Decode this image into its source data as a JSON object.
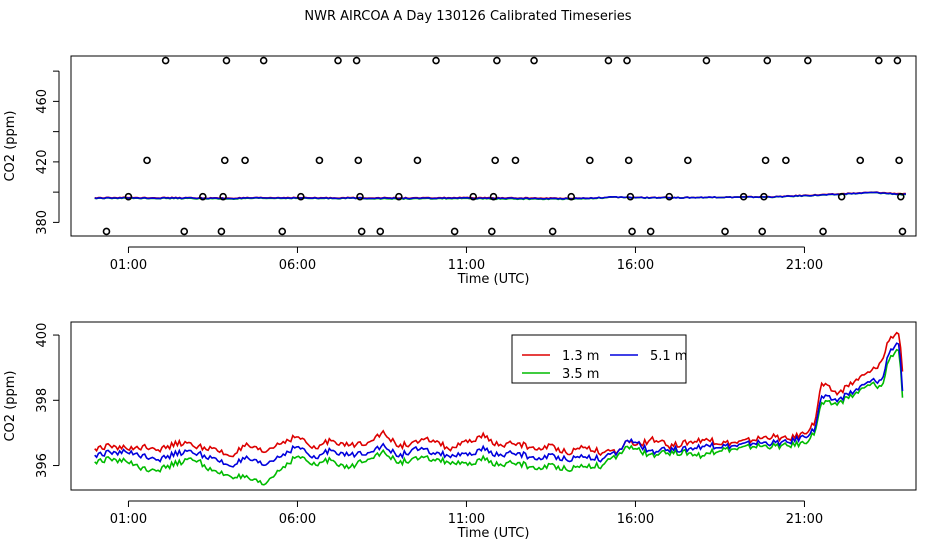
{
  "figure_title": "NWR AIRCOA A  Day 130126  Calibrated Timeseries",
  "colors": {
    "red": "#dd0000",
    "green": "#00bb00",
    "blue": "#0000dd"
  },
  "chart_data": [
    {
      "type": "line",
      "panel": "top",
      "xlabel": "Time (UTC)",
      "ylabel": "CO2 (ppm)",
      "xlim": [
        -0.7,
        24.3
      ],
      "ylim": [
        371,
        490
      ],
      "xticks": [
        1,
        6,
        11,
        16,
        21
      ],
      "xtick_labels": [
        "01:00",
        "06:00",
        "11:00",
        "16:00",
        "21:00"
      ],
      "yticks": [
        380,
        420,
        460
      ],
      "ytick_labels": [
        "380",
        "420",
        "460"
      ],
      "baseline_series": [
        {
          "name": "1.3 m",
          "color": "#dd0000",
          "values": [
            396.2,
            396.4,
            396.3,
            396.2,
            396.0,
            396.2,
            396.4,
            396.2,
            396.3,
            396.2,
            396.1,
            396.3,
            396.2,
            396.1,
            396.0,
            396.0,
            396.6,
            396.4,
            396.4,
            396.6,
            396.8,
            397.0,
            398.0,
            398.8,
            399.9,
            398.8
          ]
        },
        {
          "name": "3.5 m",
          "color": "#00bb00",
          "values": [
            395.9,
            396.0,
            395.9,
            395.8,
            395.5,
            395.9,
            396.0,
            395.8,
            396.0,
            395.6,
            395.6,
            395.8,
            395.6,
            395.5,
            395.4,
            395.6,
            396.6,
            396.2,
            396.3,
            396.5,
            396.7,
            396.8,
            397.7,
            398.5,
            399.7,
            398.2
          ]
        },
        {
          "name": "5.1 m",
          "color": "#0000dd",
          "values": [
            396.0,
            396.2,
            396.1,
            396.1,
            395.8,
            396.1,
            396.2,
            396.0,
            396.1,
            396.0,
            395.9,
            396.1,
            395.9,
            395.9,
            395.7,
            395.9,
            396.7,
            396.3,
            396.3,
            396.6,
            396.7,
            396.9,
            397.8,
            398.6,
            399.8,
            398.4
          ]
        }
      ],
      "reference_points": [
        {
          "x": 0.35,
          "y": 374
        },
        {
          "x": 1.0,
          "y": 397
        },
        {
          "x": 1.55,
          "y": 421
        },
        {
          "x": 2.1,
          "y": 487
        },
        {
          "x": 2.65,
          "y": 374
        },
        {
          "x": 3.2,
          "y": 397
        },
        {
          "x": 3.75,
          "y": 374
        },
        {
          "x": 3.8,
          "y": 397
        },
        {
          "x": 3.85,
          "y": 421
        },
        {
          "x": 3.9,
          "y": 487
        },
        {
          "x": 4.45,
          "y": 421
        },
        {
          "x": 5.0,
          "y": 487
        },
        {
          "x": 5.55,
          "y": 374
        },
        {
          "x": 6.1,
          "y": 397
        },
        {
          "x": 6.65,
          "y": 421
        },
        {
          "x": 7.2,
          "y": 487
        },
        {
          "x": 7.75,
          "y": 487
        },
        {
          "x": 7.8,
          "y": 421
        },
        {
          "x": 7.85,
          "y": 397
        },
        {
          "x": 7.9,
          "y": 374
        },
        {
          "x": 8.45,
          "y": 374
        },
        {
          "x": 9.0,
          "y": 397
        },
        {
          "x": 9.55,
          "y": 421
        },
        {
          "x": 10.1,
          "y": 487
        },
        {
          "x": 10.65,
          "y": 374
        },
        {
          "x": 11.2,
          "y": 397
        },
        {
          "x": 11.75,
          "y": 374
        },
        {
          "x": 11.8,
          "y": 397
        },
        {
          "x": 11.85,
          "y": 421
        },
        {
          "x": 11.9,
          "y": 487
        },
        {
          "x": 12.45,
          "y": 421
        },
        {
          "x": 13.0,
          "y": 487
        },
        {
          "x": 13.55,
          "y": 374
        },
        {
          "x": 14.1,
          "y": 397
        },
        {
          "x": 14.65,
          "y": 421
        },
        {
          "x": 15.2,
          "y": 487
        },
        {
          "x": 15.75,
          "y": 487
        },
        {
          "x": 15.8,
          "y": 421
        },
        {
          "x": 15.85,
          "y": 397
        },
        {
          "x": 15.9,
          "y": 374
        },
        {
          "x": 16.45,
          "y": 374
        },
        {
          "x": 17.0,
          "y": 397
        },
        {
          "x": 17.55,
          "y": 421
        },
        {
          "x": 18.1,
          "y": 487
        },
        {
          "x": 18.65,
          "y": 374
        },
        {
          "x": 19.2,
          "y": 397
        },
        {
          "x": 19.75,
          "y": 374
        },
        {
          "x": 19.8,
          "y": 397
        },
        {
          "x": 19.85,
          "y": 421
        },
        {
          "x": 19.9,
          "y": 487
        },
        {
          "x": 20.45,
          "y": 421
        },
        {
          "x": 21.1,
          "y": 487
        },
        {
          "x": 21.55,
          "y": 374
        },
        {
          "x": 22.1,
          "y": 397
        },
        {
          "x": 22.65,
          "y": 421
        },
        {
          "x": 23.2,
          "y": 487
        },
        {
          "x": 23.75,
          "y": 487
        },
        {
          "x": 23.8,
          "y": 421
        },
        {
          "x": 23.85,
          "y": 397
        },
        {
          "x": 23.9,
          "y": 374
        }
      ]
    },
    {
      "type": "line",
      "panel": "bottom",
      "xlabel": "Time (UTC)",
      "ylabel": "CO2 (ppm)",
      "xlim": [
        -0.7,
        24.3
      ],
      "ylim": [
        395.25,
        400.4
      ],
      "xticks": [
        1,
        6,
        11,
        16,
        21
      ],
      "xtick_labels": [
        "01:00",
        "06:00",
        "11:00",
        "16:00",
        "21:00"
      ],
      "yticks": [
        396,
        398,
        400
      ],
      "ytick_labels": [
        "396",
        "398",
        "400"
      ],
      "legend": {
        "entries": [
          {
            "label": "1.3 m",
            "color": "#dd0000"
          },
          {
            "label": "5.1 m",
            "color": "#0000dd"
          },
          {
            "label": "3.5 m",
            "color": "#00bb00"
          }
        ]
      },
      "series": [
        {
          "name": "1.3 m",
          "color": "#dd0000",
          "x": [
            0,
            0.5,
            1,
            1.5,
            2,
            2.5,
            3,
            3.5,
            4,
            4.5,
            5,
            5.5,
            6,
            6.5,
            7,
            7.5,
            8,
            8.5,
            9,
            9.5,
            10,
            10.5,
            11,
            11.5,
            12,
            12.5,
            13,
            13.5,
            14,
            14.5,
            15,
            15.5,
            15.8,
            16,
            16.5,
            17,
            17.5,
            18,
            18.5,
            19,
            19.5,
            20,
            20.5,
            21,
            21.3,
            21.5,
            22,
            22.5,
            23,
            23.3,
            23.5,
            23.8,
            23.9
          ],
          "values": [
            396.5,
            396.6,
            396.5,
            396.6,
            396.5,
            396.7,
            396.6,
            396.5,
            396.3,
            396.6,
            396.4,
            396.7,
            396.9,
            396.5,
            396.8,
            396.6,
            396.7,
            397.0,
            396.6,
            396.7,
            396.8,
            396.5,
            396.7,
            396.9,
            396.6,
            396.7,
            396.5,
            396.6,
            396.4,
            396.6,
            396.4,
            396.4,
            396.8,
            396.6,
            396.8,
            396.6,
            396.7,
            396.8,
            396.7,
            396.7,
            396.8,
            396.9,
            396.8,
            397.0,
            397.3,
            398.5,
            398.2,
            398.6,
            398.9,
            399.2,
            399.9,
            400.1,
            398.8
          ]
        },
        {
          "name": "3.5 m",
          "color": "#00bb00",
          "x": [
            0,
            0.5,
            1,
            1.5,
            2,
            2.5,
            3,
            3.5,
            4,
            4.5,
            5,
            5.5,
            6,
            6.5,
            7,
            7.5,
            8,
            8.5,
            9,
            9.5,
            10,
            10.5,
            11,
            11.5,
            12,
            12.5,
            13,
            13.5,
            14,
            14.5,
            15,
            15.5,
            15.8,
            16,
            16.5,
            17,
            17.5,
            18,
            18.5,
            19,
            19.5,
            20,
            20.5,
            21,
            21.3,
            21.5,
            22,
            22.5,
            23,
            23.3,
            23.5,
            23.8,
            23.9
          ],
          "values": [
            396.1,
            396.2,
            396.1,
            395.9,
            395.9,
            396.1,
            396.2,
            395.8,
            395.7,
            395.6,
            395.4,
            395.9,
            396.3,
            396.0,
            396.2,
            395.9,
            396.2,
            396.4,
            396.1,
            396.2,
            396.2,
            396.1,
            396.0,
            396.2,
            396.0,
            396.1,
            395.9,
            396.0,
            395.9,
            396.0,
            396.0,
            396.3,
            396.6,
            396.5,
            396.3,
            396.4,
            396.4,
            396.3,
            396.5,
            396.5,
            396.6,
            396.6,
            396.6,
            396.7,
            397.0,
            397.9,
            397.9,
            398.2,
            398.5,
            398.4,
            399.3,
            399.6,
            398.0
          ]
        },
        {
          "name": "5.1 m",
          "color": "#0000dd",
          "x": [
            0,
            0.5,
            1,
            1.5,
            2,
            2.5,
            3,
            3.5,
            4,
            4.5,
            5,
            5.5,
            6,
            6.5,
            7,
            7.5,
            8,
            8.5,
            9,
            9.5,
            10,
            10.5,
            11,
            11.5,
            12,
            12.5,
            13,
            13.5,
            14,
            14.5,
            15,
            15.5,
            15.8,
            16,
            16.5,
            17,
            17.5,
            18,
            18.5,
            19,
            19.5,
            20,
            20.5,
            21,
            21.3,
            21.5,
            22,
            22.5,
            23,
            23.3,
            23.5,
            23.8,
            23.9
          ],
          "values": [
            396.3,
            396.4,
            396.4,
            396.3,
            396.2,
            396.4,
            396.4,
            396.2,
            396.0,
            396.2,
            396.0,
            396.3,
            396.6,
            396.2,
            396.5,
            396.3,
            396.4,
            396.6,
            396.3,
            396.5,
            396.4,
            396.3,
            396.3,
            396.5,
            396.3,
            396.4,
            396.2,
            396.3,
            396.2,
            396.3,
            396.2,
            396.4,
            396.8,
            396.7,
            396.4,
            396.5,
            396.5,
            396.6,
            396.6,
            396.6,
            396.7,
            396.7,
            396.7,
            396.9,
            397.1,
            398.1,
            398.0,
            398.3,
            398.6,
            398.6,
            399.5,
            399.8,
            398.2
          ]
        }
      ]
    }
  ]
}
